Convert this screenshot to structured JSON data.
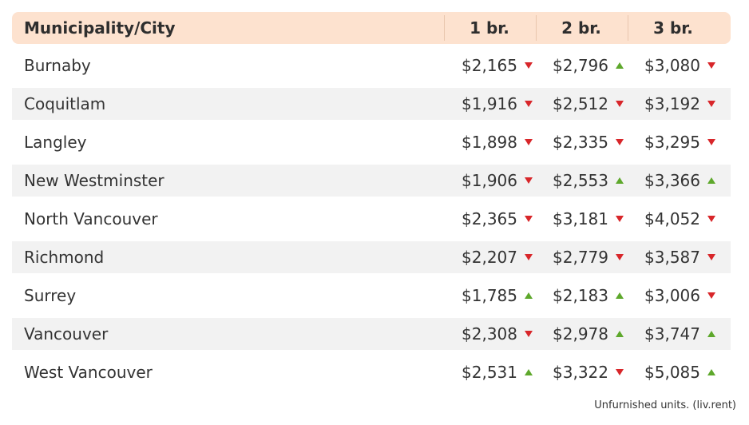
{
  "table": {
    "header": [
      "Municipality/City",
      "1 br.",
      "2 br.",
      "3 br."
    ],
    "rows": [
      [
        "Burnaby",
        {
          "text": "$2,165",
          "trend": "down"
        },
        {
          "text": "$2,796",
          "trend": "up"
        },
        {
          "text": "$3,080",
          "trend": "down"
        }
      ],
      [
        "Coquitlam",
        {
          "text": "$1,916",
          "trend": "down"
        },
        {
          "text": "$2,512",
          "trend": "down"
        },
        {
          "text": "$3,192",
          "trend": "down"
        }
      ],
      [
        "Langley",
        {
          "text": "$1,898",
          "trend": "down"
        },
        {
          "text": "$2,335",
          "trend": "down"
        },
        {
          "text": "$3,295",
          "trend": "down"
        }
      ],
      [
        "New Westminster",
        {
          "text": "$1,906",
          "trend": "down"
        },
        {
          "text": "$2,553",
          "trend": "up"
        },
        {
          "text": "$3,366",
          "trend": "up"
        }
      ],
      [
        "North Vancouver",
        {
          "text": "$2,365",
          "trend": "down"
        },
        {
          "text": "$3,181",
          "trend": "down"
        },
        {
          "text": "$4,052",
          "trend": "down"
        }
      ],
      [
        "Richmond",
        {
          "text": "$2,207",
          "trend": "down"
        },
        {
          "text": "$2,779",
          "trend": "down"
        },
        {
          "text": "$3,587",
          "trend": "down"
        }
      ],
      [
        "Surrey",
        {
          "text": "$1,785",
          "trend": "up"
        },
        {
          "text": "$2,183",
          "trend": "up"
        },
        {
          "text": "$3,006",
          "trend": "down"
        }
      ],
      [
        "Vancouver",
        {
          "text": "$2,308",
          "trend": "down"
        },
        {
          "text": "$2,978",
          "trend": "up"
        },
        {
          "text": "$3,747",
          "trend": "up"
        }
      ],
      [
        "West Vancouver",
        {
          "text": "$2,531",
          "trend": "up"
        },
        {
          "text": "$3,322",
          "trend": "down"
        },
        {
          "text": "$5,085",
          "trend": "up"
        }
      ]
    ],
    "trend_colors": {
      "up": "#5ea82c",
      "down": "#d8262a"
    }
  },
  "footer": "Unfurnished units. (liv.rent)"
}
